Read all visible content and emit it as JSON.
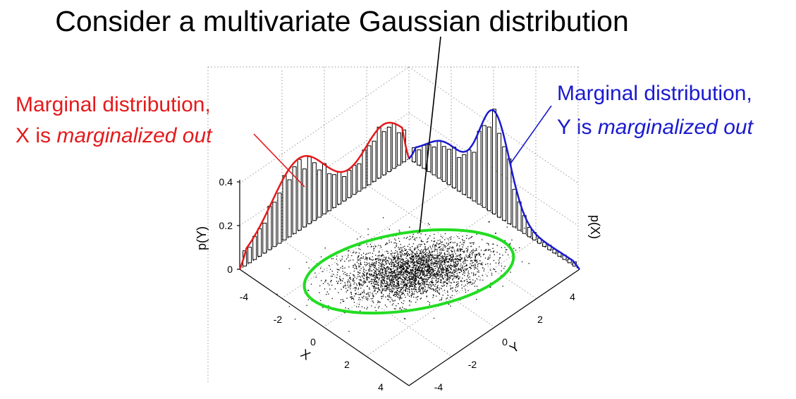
{
  "slide": {
    "title": "Consider a multivariate Gaussian distribution"
  },
  "annotations": {
    "left": {
      "line1": "Marginal distribution,",
      "line2_prefix": "X is ",
      "line2_italic": "marginalized out",
      "color": "#e41a1c"
    },
    "right": {
      "line1": "Marginal distribution,",
      "line2_prefix": "Y is ",
      "line2_italic": "marginalized out",
      "color": "#1a1acf"
    }
  },
  "plot": {
    "x_axis_label": "X",
    "y_axis_label": "Y",
    "left_wall_label": "p(Y)",
    "right_wall_label": "p(X)",
    "z_ticks": [
      "0",
      "0.2",
      "0.4"
    ],
    "x_ticks": [
      "-4",
      "-2",
      "0",
      "2",
      "4"
    ],
    "y_ticks": [
      "-4",
      "-2",
      "0",
      "2",
      "4"
    ],
    "ellipse_color": "#22dd22",
    "left_curve_color": "#e41a1c",
    "right_curve_color": "#1a1acf"
  }
}
